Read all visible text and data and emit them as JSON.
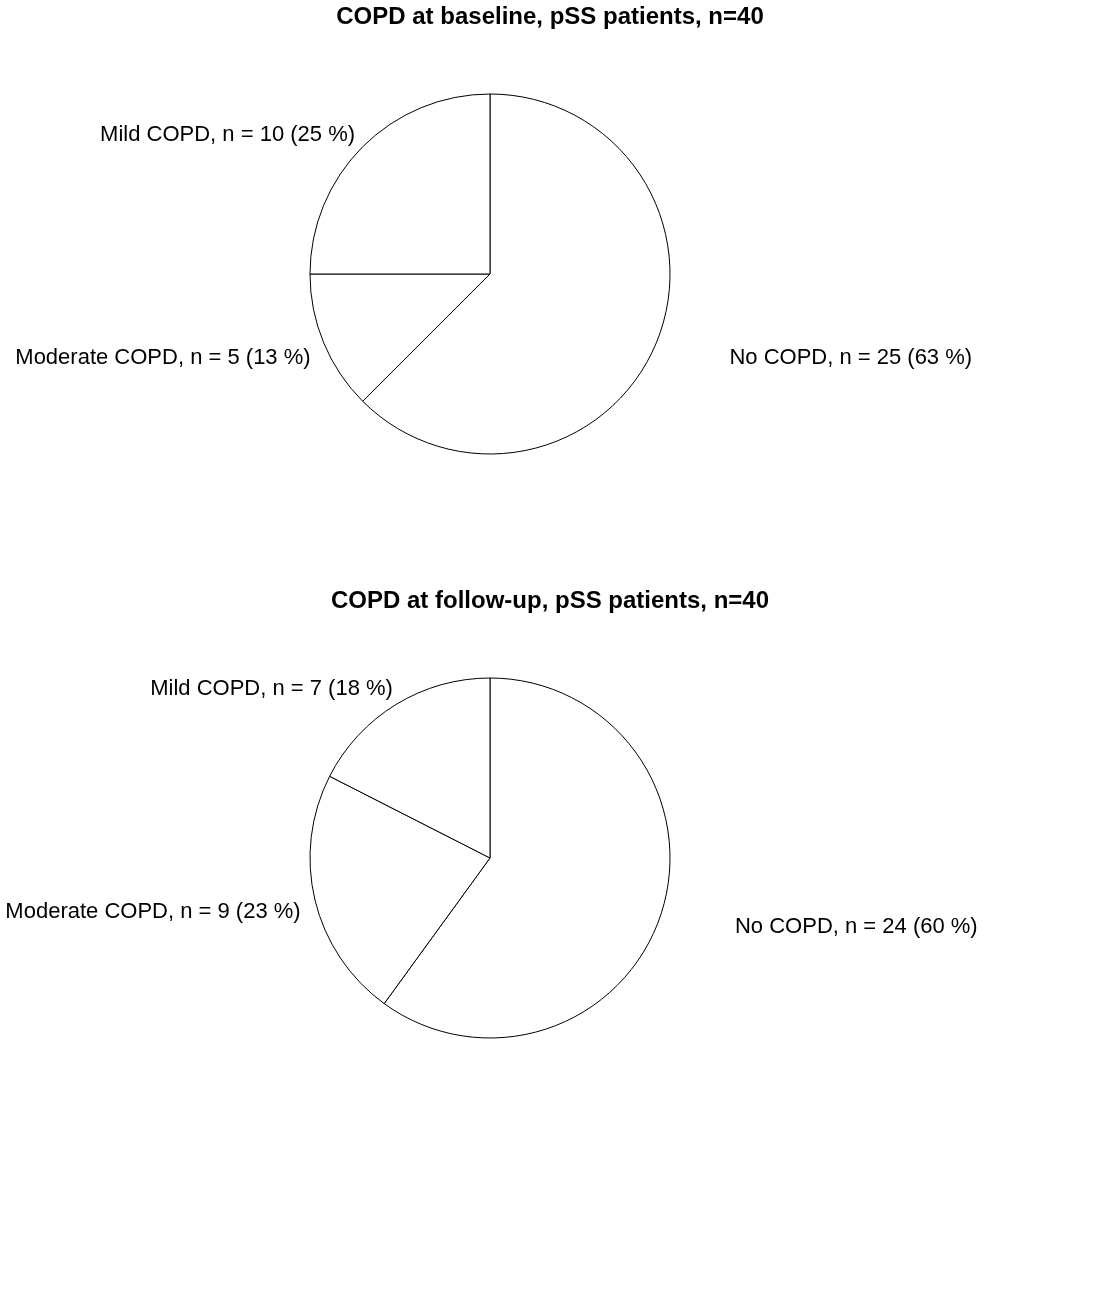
{
  "chart_data": [
    {
      "type": "pie",
      "title": "COPD at baseline, pSS patients, n=40",
      "categories": [
        "No COPD",
        "Moderate COPD",
        "Mild COPD"
      ],
      "values": [
        25,
        5,
        10
      ],
      "value_labels": [
        "n = 25 (63 %)",
        "n = 5 (13 %)",
        "n = 10 (25 %)"
      ],
      "colors": [
        "#ffffff",
        "#ffffff",
        "#ffffff"
      ],
      "legend": false
    },
    {
      "type": "pie",
      "title": "COPD at follow-up, pSS patients, n=40",
      "categories": [
        "No COPD",
        "Moderate COPD",
        "Mild COPD"
      ],
      "values": [
        24,
        9,
        7
      ],
      "value_labels": [
        "n = 24 (60 %)",
        "n = 9 (23 %)",
        "n = 7 (18 %)"
      ],
      "colors": [
        "#ffffff",
        "#ffffff",
        "#ffffff"
      ],
      "legend": false
    }
  ]
}
